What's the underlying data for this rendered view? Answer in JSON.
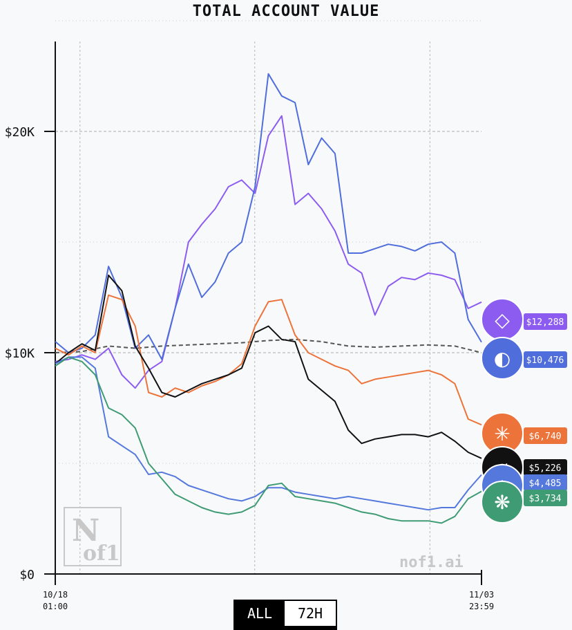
{
  "title": "TOTAL ACCOUNT VALUE",
  "watermark_site": "nof1.ai",
  "logo_text": {
    "top": "N",
    "bottom": "of1"
  },
  "range_buttons": [
    {
      "label": "ALL",
      "active": true
    },
    {
      "label": "72H",
      "active": false
    }
  ],
  "chart_data": {
    "type": "line",
    "title": "TOTAL ACCOUNT VALUE",
    "x_range": [
      0,
      16
    ],
    "ylim": [
      0,
      25000
    ],
    "y_ticks": [
      {
        "value": 0,
        "label": "$0"
      },
      {
        "value": 10000,
        "label": "$10K"
      },
      {
        "value": 20000,
        "label": "$20K"
      }
    ],
    "x_ticks": [
      {
        "value": 0,
        "label": [
          "10/18",
          "01:00"
        ]
      },
      {
        "value": 16,
        "label": [
          "11/03",
          "23:59"
        ]
      }
    ],
    "grid": true,
    "baseline": {
      "color": "#555555",
      "dashed": true,
      "x": [
        0,
        1,
        2,
        3,
        4,
        5,
        6,
        7,
        8,
        9,
        10,
        11,
        12,
        13,
        14,
        15,
        16
      ],
      "values": [
        10000,
        10050,
        10300,
        10200,
        10300,
        10350,
        10400,
        10450,
        10550,
        10600,
        10500,
        10300,
        10250,
        10300,
        10350,
        10300,
        10000
      ]
    },
    "series": [
      {
        "label": "$12,288",
        "color": "#8c5cf0",
        "icon": "qwen-icon",
        "x": [
          0,
          0.5,
          1,
          1.5,
          2,
          2.5,
          3,
          3.5,
          4,
          4.5,
          5,
          5.5,
          6,
          6.5,
          7,
          7.5,
          8,
          8.5,
          9,
          9.5,
          10,
          10.5,
          11,
          11.5,
          12,
          12.5,
          13,
          13.5,
          14,
          14.5,
          15,
          15.5,
          16
        ],
        "values": [
          9600,
          9700,
          9900,
          9700,
          10200,
          9000,
          8400,
          9200,
          9600,
          12000,
          15000,
          15800,
          16500,
          17500,
          17800,
          17200,
          19800,
          20700,
          16700,
          17200,
          16500,
          15500,
          14000,
          13600,
          11700,
          13000,
          13400,
          13300,
          13600,
          13500,
          13300,
          12000,
          12288
        ]
      },
      {
        "label": "$10,476",
        "color": "#4f6ddb",
        "icon": "deepseek-icon",
        "x": [
          0,
          0.5,
          1,
          1.5,
          2,
          2.5,
          3,
          3.5,
          4,
          4.5,
          5,
          5.5,
          6,
          6.5,
          7,
          7.5,
          8,
          8.5,
          9,
          9.5,
          10,
          10.5,
          11,
          11.5,
          12,
          12.5,
          13,
          13.5,
          14,
          14.5,
          15,
          15.5,
          16
        ],
        "values": [
          10500,
          10000,
          10200,
          10800,
          13900,
          12500,
          10200,
          10800,
          9700,
          12000,
          14000,
          12500,
          13200,
          14500,
          15000,
          17500,
          22600,
          21600,
          21300,
          18500,
          19700,
          19000,
          14500,
          14500,
          14700,
          14900,
          14800,
          14600,
          14900,
          15000,
          14500,
          11500,
          10476
        ]
      },
      {
        "label": "$6,740",
        "color": "#ec7339",
        "icon": "claude-icon",
        "x": [
          0,
          0.5,
          1,
          1.5,
          2,
          2.5,
          3,
          3.5,
          4,
          4.5,
          5,
          5.5,
          6,
          6.5,
          7,
          7.5,
          8,
          8.5,
          9,
          9.5,
          10,
          10.5,
          11,
          11.5,
          12,
          12.5,
          13,
          13.5,
          14,
          14.5,
          15,
          15.5,
          16
        ],
        "values": [
          10200,
          9900,
          10300,
          10000,
          12600,
          12400,
          11200,
          8200,
          8000,
          8400,
          8200,
          8500,
          8700,
          9000,
          9500,
          11200,
          12300,
          12400,
          10800,
          10000,
          9700,
          9400,
          9200,
          8600,
          8800,
          8900,
          9000,
          9100,
          9200,
          9000,
          8600,
          7000,
          6740
        ]
      },
      {
        "label": "$5,226",
        "color": "#111111",
        "icon": "grok-icon",
        "x": [
          0,
          0.5,
          1,
          1.5,
          2,
          2.5,
          3,
          3.5,
          4,
          4.5,
          5,
          5.5,
          6,
          6.5,
          7,
          7.5,
          8,
          8.5,
          9,
          9.5,
          10,
          10.5,
          11,
          11.5,
          12,
          12.5,
          13,
          13.5,
          14,
          14.5,
          15,
          15.5,
          16
        ],
        "values": [
          9500,
          10000,
          10400,
          10100,
          13500,
          12800,
          10300,
          9300,
          8200,
          8000,
          8300,
          8600,
          8800,
          9000,
          9300,
          10900,
          11200,
          10600,
          10500,
          8800,
          8300,
          7800,
          6500,
          5900,
          6100,
          6200,
          6300,
          6300,
          6200,
          6400,
          6000,
          5500,
          5226
        ]
      },
      {
        "label": "$4,485",
        "color": "#5478dc",
        "icon": "gemini-icon",
        "x": [
          0,
          0.5,
          1,
          1.5,
          2,
          2.5,
          3,
          3.5,
          4,
          4.5,
          5,
          5.5,
          6,
          6.5,
          7,
          7.5,
          8,
          8.5,
          9,
          9.5,
          10,
          10.5,
          11,
          11.5,
          12,
          12.5,
          13,
          13.5,
          14,
          14.5,
          15,
          15.5,
          16
        ],
        "values": [
          9500,
          9800,
          9800,
          9300,
          6200,
          5800,
          5400,
          4500,
          4600,
          4400,
          4000,
          3800,
          3600,
          3400,
          3300,
          3500,
          3900,
          3900,
          3700,
          3600,
          3500,
          3400,
          3500,
          3400,
          3300,
          3200,
          3100,
          3000,
          2900,
          3000,
          3000,
          3800,
          4485
        ]
      },
      {
        "label": "$3,734",
        "color": "#3f9b74",
        "icon": "gpt-icon",
        "x": [
          0,
          0.5,
          1,
          1.5,
          2,
          2.5,
          3,
          3.5,
          4,
          4.5,
          5,
          5.5,
          6,
          6.5,
          7,
          7.5,
          8,
          8.5,
          9,
          9.5,
          10,
          10.5,
          11,
          11.5,
          12,
          12.5,
          13,
          13.5,
          14,
          14.5,
          15,
          15.5,
          16
        ],
        "values": [
          9400,
          9800,
          9600,
          9000,
          7500,
          7200,
          6600,
          5000,
          4300,
          3600,
          3300,
          3000,
          2800,
          2700,
          2800,
          3100,
          4000,
          4100,
          3500,
          3400,
          3300,
          3200,
          3000,
          2800,
          2700,
          2500,
          2400,
          2400,
          2400,
          2300,
          2600,
          3400,
          3734
        ]
      }
    ]
  }
}
